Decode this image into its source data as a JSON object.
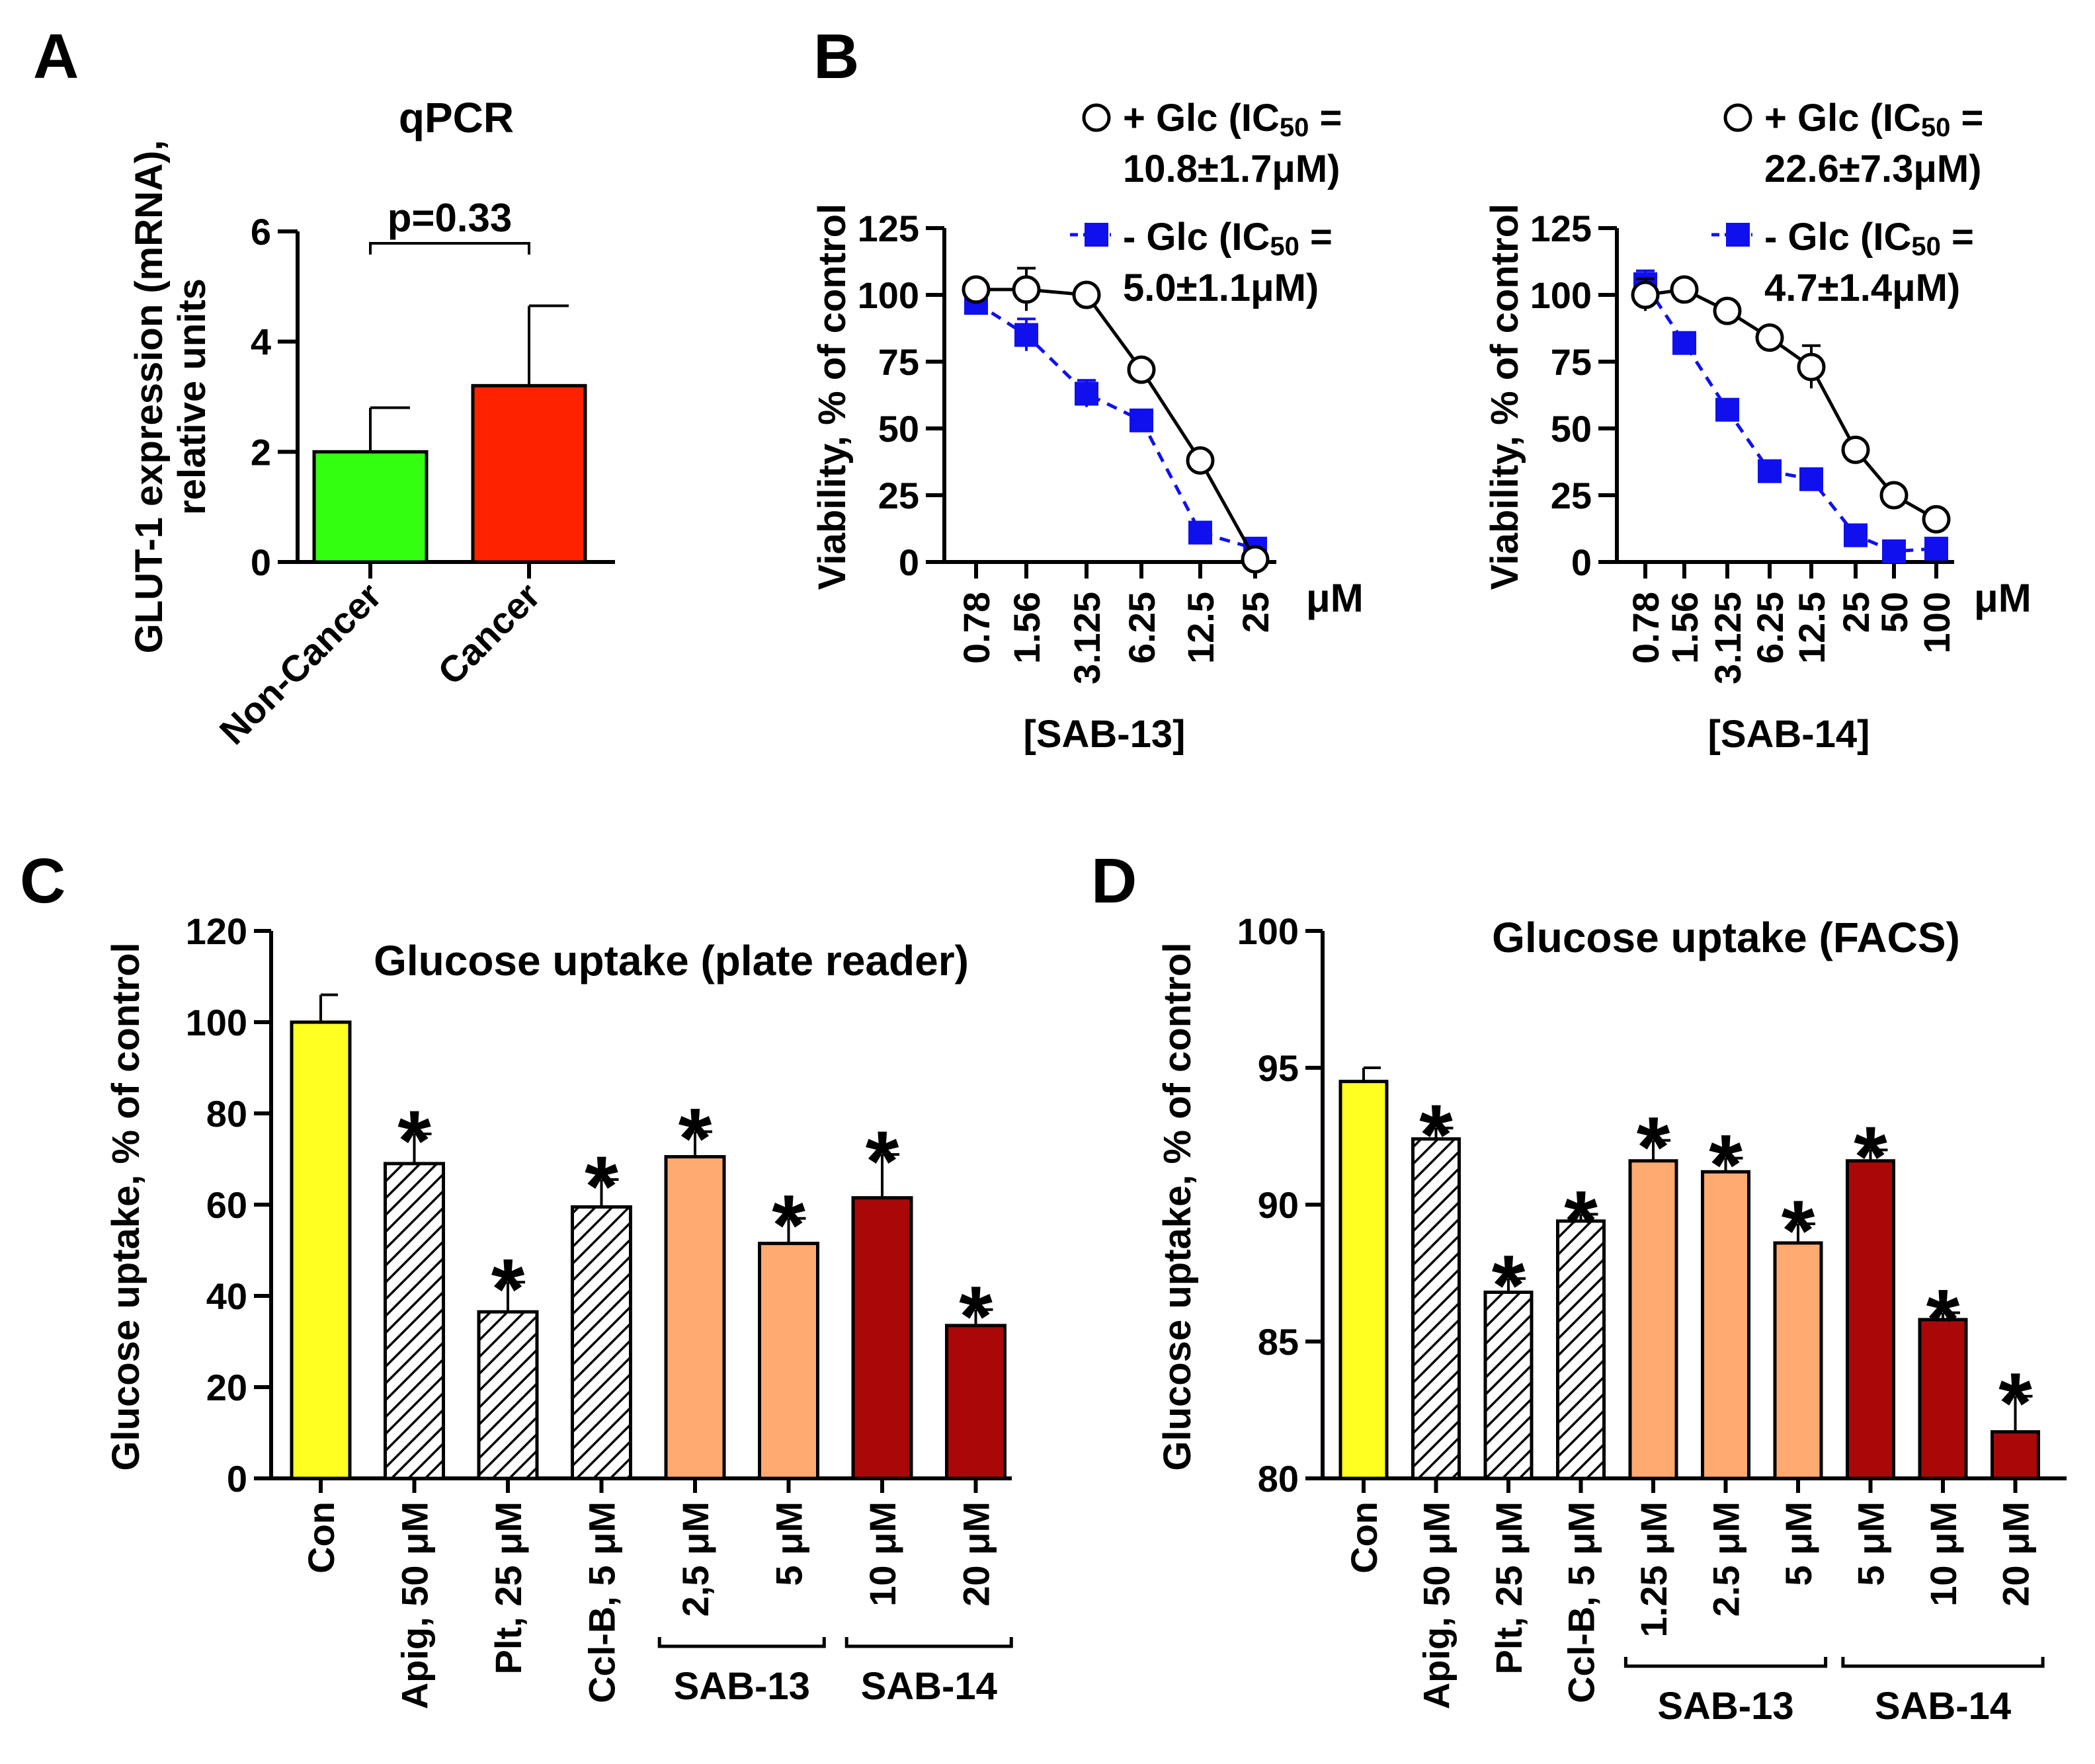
{
  "panels": {
    "A": "A",
    "B": "B",
    "C": "C",
    "D": "D"
  },
  "unit_label": "μM",
  "chart_data": [
    {
      "id": "A",
      "type": "bar",
      "title": "qPCR",
      "ylabel_lines": [
        "GLUT-1 expression (mRNA),",
        "relative units"
      ],
      "categories": [
        "Non-Cancer",
        "Cancer"
      ],
      "values": [
        2.0,
        3.2
      ],
      "errors": [
        0.8,
        1.45
      ],
      "colors": [
        "#33ff11",
        "#ff2200"
      ],
      "ylim": [
        0,
        6
      ],
      "yticks": [
        0,
        2,
        4,
        6
      ],
      "annotation": "p=0.33"
    },
    {
      "id": "B1",
      "type": "line",
      "xlabel": "[SAB-13]",
      "ylabel": "Viability, % of control",
      "x": [
        "0.78",
        "1.56",
        "3.125",
        "6.25",
        "12.5",
        "25"
      ],
      "ylim": [
        0,
        125
      ],
      "yticks": [
        0,
        25,
        50,
        75,
        100,
        125
      ],
      "series": [
        {
          "name": "+ Glc (IC50 = 10.8±1.7μM)",
          "legend_lines": [
            "+ Glc (IC",
            "50",
            " =",
            "10.8±1.7μM)"
          ],
          "marker": "circle",
          "color": "#000000",
          "dashed": false,
          "values": [
            102,
            102,
            100,
            72,
            38,
            1
          ],
          "errors": [
            0,
            8,
            0,
            2,
            2,
            0
          ]
        },
        {
          "name": "- Glc (IC50 = 5.0±1.1μM)",
          "legend_lines": [
            "- Glc (IC",
            "50",
            " =",
            "5.0±1.1μM)"
          ],
          "marker": "square",
          "color": "#1010ee",
          "dashed": true,
          "values": [
            97,
            85,
            63,
            53,
            11,
            5
          ],
          "errors": [
            0,
            6,
            5,
            3,
            1,
            1
          ]
        }
      ]
    },
    {
      "id": "B2",
      "type": "line",
      "xlabel": "[SAB-14]",
      "ylabel": "Viability, % of control",
      "x": [
        "0.78",
        "1.56",
        "3.125",
        "6.25",
        "12.5",
        "25",
        "50",
        "100"
      ],
      "ylim": [
        0,
        125
      ],
      "yticks": [
        0,
        25,
        50,
        75,
        100,
        125
      ],
      "series": [
        {
          "name": "+ Glc (IC50 = 22.6±7.3μM)",
          "legend_lines": [
            "+ Glc (IC",
            "50",
            " =",
            "22.6±7.3μM)"
          ],
          "marker": "circle",
          "color": "#000000",
          "dashed": false,
          "values": [
            100,
            102,
            94,
            84,
            73,
            42,
            25,
            16
          ],
          "errors": [
            6,
            0,
            0,
            0,
            8,
            0,
            0,
            0
          ]
        },
        {
          "name": "- Glc (IC50 = 4.7±1.4μM)",
          "legend_lines": [
            "- Glc (IC",
            "50",
            " =",
            "4.7±1.4μM)"
          ],
          "marker": "square",
          "color": "#1010ee",
          "dashed": true,
          "values": [
            104,
            82,
            57,
            34,
            31,
            10,
            4,
            5
          ],
          "errors": [
            5,
            3,
            3,
            2,
            2,
            2,
            1,
            1
          ]
        }
      ]
    },
    {
      "id": "C",
      "type": "bar",
      "title": "Glucose uptake (plate reader)",
      "ylabel": "Glucose uptake, % of control",
      "categories": [
        "Con",
        "Apig, 50 μM",
        "Plt, 25 μM",
        "Ccl-B, 5 μM",
        "2,5 μM",
        "5 μM",
        "10 μM",
        "20 μM"
      ],
      "values": [
        100,
        69,
        36.5,
        59.5,
        70.5,
        51.5,
        61.5,
        33.5
      ],
      "errors": [
        6,
        6.5,
        6.5,
        6,
        5.5,
        5.5,
        9.5,
        3.5
      ],
      "styles": [
        "yellow",
        "hatch",
        "hatch",
        "hatch",
        "orange",
        "orange",
        "darkred",
        "darkred"
      ],
      "significant": [
        false,
        true,
        true,
        true,
        true,
        true,
        true,
        true
      ],
      "star": "*",
      "groups": [
        {
          "label": "SAB-13",
          "from": 4,
          "to": 5
        },
        {
          "label": "SAB-14",
          "from": 6,
          "to": 7
        }
      ],
      "ylim": [
        0,
        120
      ],
      "yticks": [
        0,
        20,
        40,
        60,
        80,
        100,
        120
      ]
    },
    {
      "id": "D",
      "type": "bar",
      "title": "Glucose uptake (FACS)",
      "ylabel": "Glucose uptake, % of control",
      "categories": [
        "Con",
        "Apig, 50 μM",
        "Plt, 25 μM",
        "Ccl-B, 5 μM",
        "1.25 μM",
        "2.5 μM",
        "5 μM",
        "5 μM",
        "10 μM",
        "20 μM"
      ],
      "values": [
        94.5,
        92.4,
        86.8,
        89.4,
        91.6,
        91.2,
        88.6,
        91.6,
        85.8,
        81.7
      ],
      "errors": [
        0.5,
        0.4,
        0.5,
        0.25,
        0.75,
        0.5,
        0.7,
        0.4,
        0.25,
        1.3
      ],
      "styles": [
        "yellow",
        "hatch",
        "hatch",
        "hatch",
        "orange",
        "orange",
        "orange",
        "darkred",
        "darkred",
        "darkred"
      ],
      "significant": [
        false,
        true,
        true,
        true,
        true,
        true,
        true,
        true,
        true,
        true
      ],
      "star": "*",
      "groups": [
        {
          "label": "SAB-13",
          "from": 4,
          "to": 6
        },
        {
          "label": "SAB-14",
          "from": 7,
          "to": 9
        }
      ],
      "ylim": [
        80,
        100
      ],
      "yticks": [
        80,
        85,
        90,
        95,
        100
      ]
    }
  ]
}
